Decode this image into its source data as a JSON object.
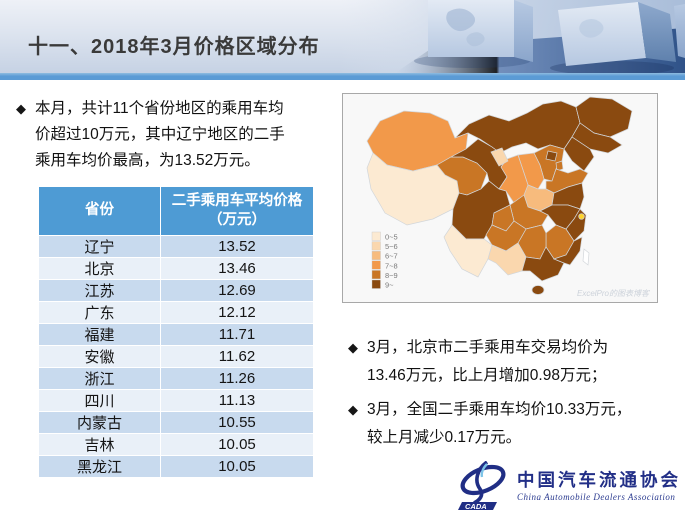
{
  "header": {
    "title": "十一、2018年3月价格区域分布"
  },
  "left_panel": {
    "bullet_marker": "◆",
    "bullet": "本月，共计11个省份地区的乘用车均价超过10万元，其中辽宁地区的二手乘用车均价最高，为13.52万元。"
  },
  "table": {
    "col_headers": [
      "省份",
      "二手乘用车平均价格\n（万元）"
    ],
    "rows": [
      [
        "辽宁",
        "13.52"
      ],
      [
        "北京",
        "13.46"
      ],
      [
        "江苏",
        "12.69"
      ],
      [
        "广东",
        "12.12"
      ],
      [
        "福建",
        "11.71"
      ],
      [
        "安徽",
        "11.62"
      ],
      [
        "浙江",
        "11.26"
      ],
      [
        "四川",
        "11.13"
      ],
      [
        "内蒙古",
        "10.55"
      ],
      [
        "吉林",
        "10.05"
      ],
      [
        "黑龙江",
        "10.05"
      ]
    ]
  },
  "map": {
    "legend_labels": [
      "0~5",
      "5~6",
      "6~7",
      "7~8",
      "8~9",
      "9~"
    ],
    "bucket_colors": {
      "0~5": "#fcead2",
      "5~6": "#fad7ae",
      "6~7": "#f7bb7d",
      "7~8": "#f2994a",
      "8~9": "#c97625",
      "9~": "#8a4a10",
      "marker": "#ffd42a",
      "none": "#ffffff"
    },
    "region_buckets": {
      "xinjiang": "7~8",
      "tibet": "0~5",
      "qinghai": "8~9",
      "gansu": "9~",
      "ningxia": "5~6",
      "innermongolia": "9~",
      "heilongjiang": "9~",
      "jilin": "9~",
      "liaoning": "9~",
      "beijing": "9~",
      "tianjin": "8~9",
      "hebei": "8~9",
      "shanxi": "7~8",
      "shaanxi": "7~8",
      "shandong": "8~9",
      "henan": "6~7",
      "jiangsu": "9~",
      "anhui": "9~",
      "hubei": "8~9",
      "chongqing": "8~9",
      "sichuan": "9~",
      "zhejiang": "9~",
      "jiangxi": "8~9",
      "hunan": "8~9",
      "guizhou": "8~9",
      "yunnan": "0~5",
      "guangxi": "5~6",
      "guangdong": "9~",
      "fujian": "9~",
      "hainan": "9~",
      "taiwan": "none",
      "shanghai": "marker"
    },
    "watermark": "ExcelPro的图表博客"
  },
  "right_panel": {
    "bullet_marker": "◆",
    "bullets": [
      "3月，北京市二手乘用车交易均价为13.46万元，比上月增加0.98万元；",
      "3月，全国二手乘用车均价10.33万元，较上月减少0.17万元。"
    ]
  },
  "logo": {
    "abbr": "CADA",
    "name_cn": "中国汽车流通协会",
    "name_en": "China Automobile Dealers Association"
  },
  "chart_data": [
    {
      "type": "table",
      "title": "二手乘用车平均价格（万元）",
      "categories": [
        "辽宁",
        "北京",
        "江苏",
        "广东",
        "福建",
        "安徽",
        "浙江",
        "四川",
        "内蒙古",
        "吉林",
        "黑龙江"
      ],
      "values": [
        13.52,
        13.46,
        12.69,
        12.12,
        11.71,
        11.62,
        11.26,
        11.13,
        10.55,
        10.05,
        10.05
      ]
    },
    {
      "type": "heatmap",
      "subtype": "china-choropleth",
      "legend_buckets": [
        "0~5",
        "5~6",
        "6~7",
        "7~8",
        "8~9",
        "9~"
      ],
      "unit": "万元",
      "legend_position": "bottom-left"
    }
  ]
}
